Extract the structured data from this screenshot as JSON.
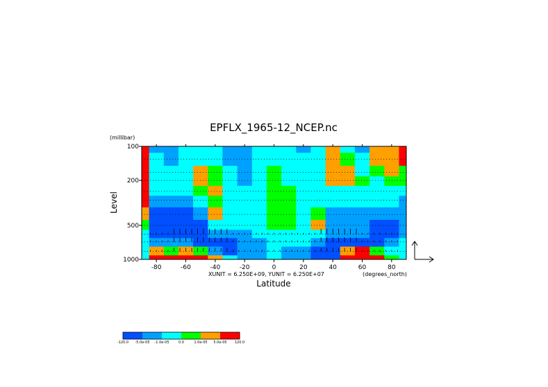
{
  "chart_data": {
    "type": "heatmap",
    "title": "EPFLX_1965-12_NCEP.nc",
    "xlabel": "Latitude",
    "ylabel": "Level",
    "x_units": "(degrees_north)",
    "y_units": "(millibar)",
    "xlim": [
      -90,
      90
    ],
    "ylim": [
      1000,
      100
    ],
    "y_scale": "log",
    "x_ticks": [
      "-80",
      "-60",
      "-40",
      "-20",
      "0",
      "20",
      "40",
      "60",
      "80"
    ],
    "x_tick_values": [
      -80,
      -60,
      -40,
      -20,
      0,
      20,
      40,
      60,
      80
    ],
    "y_ticks": [
      "100",
      "200",
      "500",
      "1000"
    ],
    "y_tick_values": [
      100,
      200,
      500,
      1000
    ],
    "vector_scale_text": "XUNIT = 6.250E+09, YUNIT = 6.250E+07",
    "grid": "dotted horizontal lines",
    "levels": [
      "-120.0",
      "-5.0e-05",
      "-1.0e-05",
      "0.0",
      "1.0e-05",
      "5.0e-05",
      "120.0"
    ],
    "colors": [
      "#0050ff",
      "#00a0ff",
      "#00ffff",
      "#00ff00",
      "#ffa000",
      "#ff0000"
    ],
    "lat": [
      -90,
      -80,
      -70,
      -60,
      -50,
      -40,
      -30,
      -20,
      -10,
      0,
      10,
      20,
      30,
      40,
      50,
      60,
      70,
      80,
      90
    ],
    "pressure": [
      100,
      130,
      170,
      200,
      250,
      300,
      400,
      500,
      600,
      700,
      850,
      1000
    ],
    "values": [
      [
        5,
        1,
        1,
        2,
        2,
        2,
        1,
        1,
        2,
        2,
        2,
        1,
        2,
        4,
        2,
        1,
        4,
        4,
        5
      ],
      [
        5,
        2,
        1,
        2,
        2,
        2,
        1,
        1,
        2,
        2,
        2,
        2,
        2,
        4,
        3,
        2,
        4,
        4,
        5
      ],
      [
        5,
        2,
        2,
        2,
        4,
        3,
        2,
        1,
        2,
        3,
        2,
        2,
        2,
        4,
        4,
        2,
        3,
        4,
        3
      ],
      [
        5,
        2,
        2,
        2,
        4,
        3,
        2,
        1,
        2,
        3,
        2,
        2,
        2,
        4,
        4,
        3,
        2,
        3,
        3
      ],
      [
        5,
        2,
        2,
        2,
        3,
        4,
        2,
        2,
        2,
        3,
        3,
        2,
        2,
        2,
        2,
        2,
        2,
        2,
        2
      ],
      [
        5,
        1,
        1,
        1,
        2,
        3,
        2,
        2,
        2,
        3,
        3,
        2,
        2,
        2,
        2,
        2,
        2,
        2,
        1
      ],
      [
        4,
        0,
        0,
        0,
        1,
        4,
        2,
        2,
        2,
        3,
        3,
        2,
        3,
        1,
        1,
        1,
        1,
        1,
        1
      ],
      [
        3,
        0,
        0,
        0,
        0,
        2,
        2,
        2,
        2,
        3,
        3,
        2,
        4,
        1,
        1,
        1,
        0,
        0,
        1
      ],
      [
        2,
        0,
        0,
        0,
        0,
        1,
        1,
        1,
        2,
        2,
        2,
        2,
        2,
        1,
        1,
        1,
        0,
        0,
        1
      ],
      [
        2,
        1,
        1,
        1,
        0,
        0,
        0,
        1,
        1,
        2,
        2,
        2,
        1,
        0,
        0,
        0,
        0,
        1,
        2
      ],
      [
        2,
        4,
        3,
        4,
        3,
        1,
        0,
        1,
        1,
        2,
        1,
        1,
        0,
        0,
        4,
        5,
        3,
        2,
        2
      ],
      [
        2,
        5,
        5,
        5,
        5,
        4,
        2,
        1,
        1,
        2,
        1,
        1,
        0,
        0,
        5,
        5,
        5,
        3,
        2
      ]
    ]
  }
}
